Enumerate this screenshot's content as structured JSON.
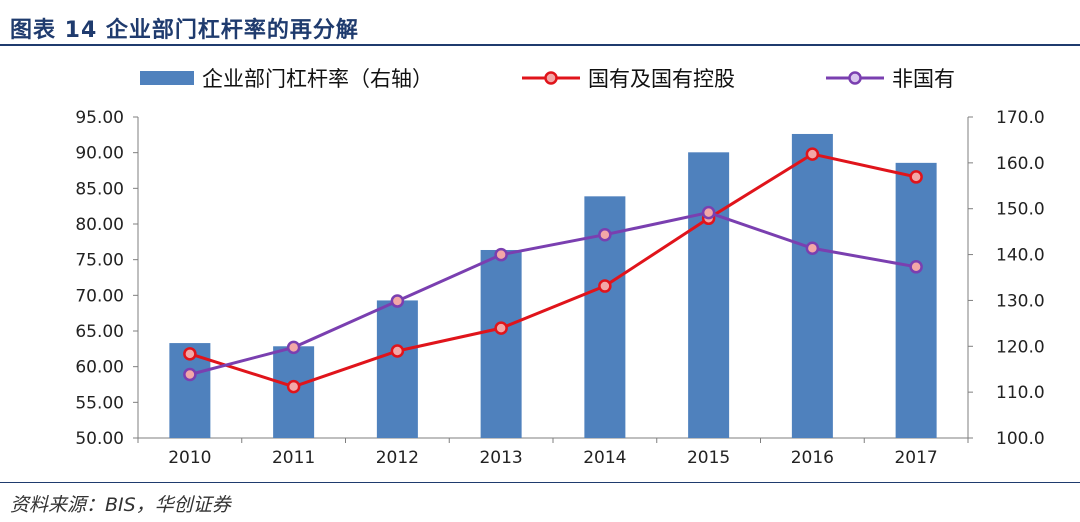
{
  "title": "图表 14 企业部门杠杆率的再分解",
  "source": "资料来源：BIS，华创证券",
  "colors": {
    "bar": "#4f81bd",
    "state": "#e0141b",
    "nonstate": "#7a3fb0",
    "title": "#1f3b6e"
  },
  "chart_data": {
    "type": "bar",
    "categories": [
      "2010",
      "2011",
      "2012",
      "2013",
      "2014",
      "2015",
      "2016",
      "2017"
    ],
    "series": [
      {
        "name": "企业部门杠杆率（右轴）",
        "type": "bar",
        "axis": "right",
        "values": [
          120.7,
          120.0,
          130.0,
          141.0,
          152.7,
          162.3,
          166.3,
          160.0
        ]
      },
      {
        "name": "国有及国有控股",
        "type": "line",
        "axis": "left",
        "values": [
          61.8,
          57.2,
          62.2,
          65.4,
          71.3,
          80.8,
          89.8,
          86.6
        ]
      },
      {
        "name": "非国有",
        "type": "line",
        "axis": "left",
        "values": [
          58.9,
          62.7,
          69.2,
          75.7,
          78.5,
          81.6,
          76.6,
          74.0
        ]
      }
    ],
    "left_axis": {
      "min": 50,
      "max": 95,
      "step": 5,
      "tick_labels": [
        "50.00",
        "55.00",
        "60.00",
        "65.00",
        "70.00",
        "75.00",
        "80.00",
        "85.00",
        "90.00",
        "95.00"
      ]
    },
    "right_axis": {
      "min": 100,
      "max": 170,
      "step": 10,
      "tick_labels": [
        "100.0",
        "110.0",
        "120.0",
        "130.0",
        "140.0",
        "150.0",
        "160.0",
        "170.0"
      ]
    },
    "legend_position": "top",
    "grid": false
  }
}
